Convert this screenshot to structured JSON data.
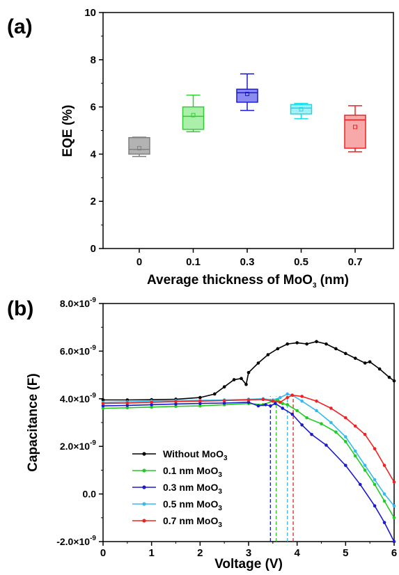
{
  "panel_a_label": "(a)",
  "panel_b_label": "(b)",
  "chart_data": [
    {
      "type": "box",
      "xlabel": "Average thickness of MoO3 (nm)",
      "xlabel_main": "Average thickness of MoO",
      "xlabel_sub": "3",
      "xlabel_tail": " (nm)",
      "ylabel": "EQE (%)",
      "ylim": [
        0,
        10
      ],
      "yticks": [
        0,
        2,
        4,
        6,
        8,
        10
      ],
      "categories": [
        "0",
        "0.1",
        "0.3",
        "0.5",
        "0.7"
      ],
      "boxes": [
        {
          "category": "0",
          "min": 3.9,
          "q1": 4.0,
          "median": 4.2,
          "q3": 4.7,
          "max": 4.72,
          "mean": 4.25,
          "color": "#808080",
          "fill": "#b3b3b3"
        },
        {
          "category": "0.1",
          "min": 4.95,
          "q1": 5.05,
          "median": 5.6,
          "q3": 6.0,
          "max": 6.5,
          "mean": 5.65,
          "color": "#33cc33",
          "fill": "#aaf0aa"
        },
        {
          "category": "0.3",
          "min": 5.85,
          "q1": 6.2,
          "median": 6.6,
          "q3": 6.75,
          "max": 7.4,
          "mean": 6.55,
          "color": "#1a1acc",
          "fill": "#8c8cf0"
        },
        {
          "category": "0.5",
          "min": 5.5,
          "q1": 5.7,
          "median": 5.95,
          "q3": 6.1,
          "max": 6.15,
          "mean": 5.9,
          "color": "#1ad9e6",
          "fill": "#9ef2f7"
        },
        {
          "category": "0.7",
          "min": 4.1,
          "q1": 4.25,
          "median": 5.45,
          "q3": 5.65,
          "max": 6.05,
          "mean": 5.15,
          "color": "#ee2222",
          "fill": "#f7a8a8"
        }
      ]
    },
    {
      "type": "line",
      "xlabel": "Voltage (V)",
      "ylabel": "Capacitance (F)",
      "xlim": [
        0,
        6
      ],
      "ylim": [
        -2e-09,
        8e-09
      ],
      "xticks": [
        0,
        1,
        2,
        3,
        4,
        5,
        6
      ],
      "yticks": [
        -2e-09,
        0.0,
        2e-09,
        4e-09,
        6e-09,
        8e-09
      ],
      "ytick_labels": [
        "-2.0×10",
        "0.0",
        "2.0×10",
        "4.0×10",
        "6.0×10",
        "8.0×10"
      ],
      "ytick_exps": [
        "-9",
        "",
        "-9",
        "-9",
        "-9",
        "-9"
      ],
      "series": [
        {
          "name": "Without MoO3",
          "name_main": "Without MoO",
          "name_sub": "3",
          "color": "#000000",
          "x": [
            0,
            0.5,
            1,
            1.5,
            2,
            2.3,
            2.5,
            2.7,
            2.85,
            2.95,
            3.0,
            3.2,
            3.4,
            3.6,
            3.8,
            4.0,
            4.2,
            4.4,
            4.6,
            4.8,
            5.0,
            5.2,
            5.4,
            5.5,
            5.7,
            5.9,
            6.0
          ],
          "y": [
            3.95e-09,
            3.95e-09,
            3.96e-09,
            3.98e-09,
            4.05e-09,
            4.2e-09,
            4.5e-09,
            4.8e-09,
            4.85e-09,
            4.6e-09,
            5.1e-09,
            5.5e-09,
            5.85e-09,
            6.1e-09,
            6.3e-09,
            6.35e-09,
            6.3e-09,
            6.4e-09,
            6.3e-09,
            6.1e-09,
            5.9e-09,
            5.7e-09,
            5.5e-09,
            5.55e-09,
            5.25e-09,
            4.9e-09,
            4.75e-09
          ]
        },
        {
          "name": "0.1 nm MoO3",
          "name_main": "0.1 nm MoO",
          "name_sub": "3",
          "color": "#22cc22",
          "x": [
            0,
            0.5,
            1,
            1.5,
            2,
            2.5,
            3,
            3.3,
            3.5,
            3.6,
            3.7,
            3.8,
            4.0,
            4.2,
            4.5,
            4.8,
            5.0,
            5.2,
            5.4,
            5.6,
            5.8,
            6.0
          ],
          "y": [
            3.6e-09,
            3.62e-09,
            3.65e-09,
            3.68e-09,
            3.7e-09,
            3.75e-09,
            3.8e-09,
            3.75e-09,
            3.9e-09,
            3.95e-09,
            3.8e-09,
            3.75e-09,
            3.5e-09,
            3.2e-09,
            2.95e-09,
            2.6e-09,
            2.2e-09,
            1.6e-09,
            1e-09,
            4e-10,
            -3e-10,
            -1e-09
          ]
        },
        {
          "name": "0.3 nm MoO3",
          "name_main": "0.3 nm MoO",
          "name_sub": "3",
          "color": "#1a1acc",
          "x": [
            0,
            0.5,
            1,
            1.5,
            2,
            2.5,
            3,
            3.2,
            3.35,
            3.45,
            3.55,
            3.7,
            3.9,
            4.1,
            4.3,
            4.6,
            5.0,
            5.3,
            5.6,
            5.8,
            6.0
          ],
          "y": [
            3.7e-09,
            3.72e-09,
            3.75e-09,
            3.78e-09,
            3.8e-09,
            3.82e-09,
            3.85e-09,
            3.7e-09,
            3.75e-09,
            3.7e-09,
            3.8e-09,
            3.6e-09,
            3.35e-09,
            2.9e-09,
            2.5e-09,
            2.05e-09,
            1.2e-09,
            4e-10,
            -5e-10,
            -1.2e-09,
            -2e-09
          ]
        },
        {
          "name": "0.5 nm MoO3",
          "name_main": "0.5 nm MoO",
          "name_sub": "3",
          "color": "#33bbee",
          "x": [
            0,
            0.5,
            1,
            1.5,
            2,
            2.5,
            3,
            3.3,
            3.5,
            3.65,
            3.8,
            3.9,
            4.1,
            4.4,
            4.7,
            5.0,
            5.2,
            5.4,
            5.6,
            5.8,
            6.0
          ],
          "y": [
            3.85e-09,
            3.87e-09,
            3.9e-09,
            3.92e-09,
            3.93e-09,
            3.95e-09,
            3.98e-09,
            4e-09,
            3.95e-09,
            4.05e-09,
            4.2e-09,
            4.15e-09,
            3.9e-09,
            3.5e-09,
            3e-09,
            2.4e-09,
            1.8e-09,
            1.2e-09,
            6e-10,
            0.0,
            -5e-10
          ]
        },
        {
          "name": "0.7 nm MoO3",
          "name_main": "0.7 nm MoO",
          "name_sub": "3",
          "color": "#ee2222",
          "x": [
            0,
            0.5,
            1,
            1.5,
            2,
            2.5,
            3,
            3.3,
            3.5,
            3.65,
            3.8,
            3.9,
            4.1,
            4.4,
            4.7,
            5.0,
            5.2,
            5.4,
            5.6,
            5.8,
            6.0
          ],
          "y": [
            3.8e-09,
            3.82e-09,
            3.85e-09,
            3.88e-09,
            3.9e-09,
            3.92e-09,
            3.95e-09,
            3.97e-09,
            3.9e-09,
            3.85e-09,
            4.05e-09,
            4.15e-09,
            4.1e-09,
            3.9e-09,
            3.6e-09,
            3.2e-09,
            2.85e-09,
            2.5e-09,
            1.9e-09,
            1.2e-09,
            5e-10
          ]
        }
      ],
      "dashed_lines": [
        {
          "x": 3.45,
          "color": "#1a1acc"
        },
        {
          "x": 3.57,
          "color": "#22cc22"
        },
        {
          "x": 3.8,
          "color": "#33bbee"
        },
        {
          "x": 3.92,
          "color": "#ee2222"
        }
      ]
    }
  ]
}
